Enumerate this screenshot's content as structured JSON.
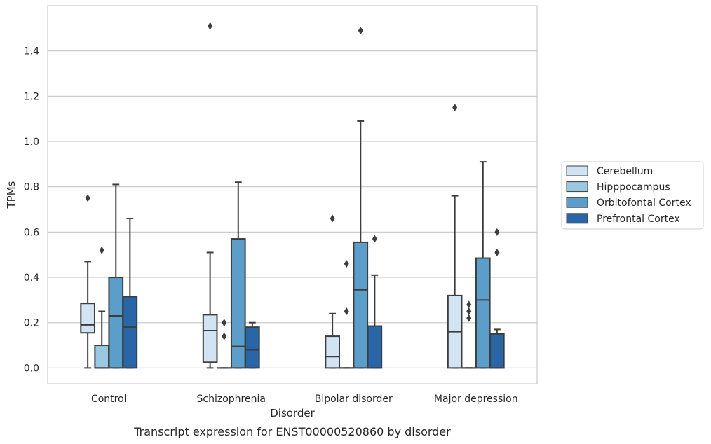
{
  "chart_data": {
    "type": "boxplot",
    "xlabel": "Disorder",
    "ylabel": "TPMs",
    "caption": "Transcript expression for ENST00000520860 by disorder",
    "ylim": [
      -0.07,
      1.6
    ],
    "yticks": [
      "0.0",
      "0.2",
      "0.4",
      "0.6",
      "0.8",
      "1.0",
      "1.2",
      "1.4"
    ],
    "grid": "horizontal",
    "legend_position": "right",
    "categories": [
      "Control",
      "Schizophrenia",
      "Bipolar disorder",
      "Major depression"
    ],
    "series": [
      {
        "name": "Cerebellum",
        "color": "#d2e3f3",
        "boxes": [
          {
            "whisker_low": 0.0,
            "q1": 0.155,
            "median": 0.19,
            "q3": 0.285,
            "whisker_high": 0.47,
            "outliers": [
              0.75
            ]
          },
          {
            "whisker_low": 0.0,
            "q1": 0.025,
            "median": 0.165,
            "q3": 0.235,
            "whisker_high": 0.51,
            "outliers": [
              1.51
            ]
          },
          {
            "whisker_low": 0.0,
            "q1": 0.0,
            "median": 0.05,
            "q3": 0.14,
            "whisker_high": 0.24,
            "outliers": [
              0.66
            ]
          },
          {
            "whisker_low": 0.0,
            "q1": 0.0,
            "median": 0.16,
            "q3": 0.32,
            "whisker_high": 0.76,
            "outliers": [
              1.15
            ]
          }
        ]
      },
      {
        "name": "Hipppocampus",
        "color": "#9ac8e0",
        "boxes": [
          {
            "whisker_low": 0.0,
            "q1": 0.0,
            "median": 0.0,
            "q3": 0.1,
            "whisker_high": 0.25,
            "outliers": [
              0.52
            ]
          },
          {
            "whisker_low": 0.0,
            "q1": 0.0,
            "median": 0.0,
            "q3": 0.0,
            "whisker_high": 0.0,
            "outliers": [
              0.2,
              0.14
            ]
          },
          {
            "whisker_low": 0.0,
            "q1": 0.0,
            "median": 0.0,
            "q3": 0.0,
            "whisker_high": 0.0,
            "outliers": [
              0.46,
              0.25
            ]
          },
          {
            "whisker_low": 0.0,
            "q1": 0.0,
            "median": 0.0,
            "q3": 0.0,
            "whisker_high": 0.0,
            "outliers": [
              0.28,
              0.25,
              0.22
            ]
          }
        ]
      },
      {
        "name": "Orbitofontal Cortex",
        "color": "#5a9ec9",
        "boxes": [
          {
            "whisker_low": 0.0,
            "q1": 0.0,
            "median": 0.23,
            "q3": 0.4,
            "whisker_high": 0.81,
            "outliers": []
          },
          {
            "whisker_low": 0.0,
            "q1": 0.0,
            "median": 0.095,
            "q3": 0.57,
            "whisker_high": 0.82,
            "outliers": []
          },
          {
            "whisker_low": 0.0,
            "q1": 0.0,
            "median": 0.345,
            "q3": 0.555,
            "whisker_high": 1.09,
            "outliers": [
              1.49
            ]
          },
          {
            "whisker_low": 0.0,
            "q1": 0.0,
            "median": 0.3,
            "q3": 0.485,
            "whisker_high": 0.91,
            "outliers": []
          }
        ]
      },
      {
        "name": "Prefrontal Cortex",
        "color": "#2866a8",
        "boxes": [
          {
            "whisker_low": 0.0,
            "q1": 0.0,
            "median": 0.18,
            "q3": 0.315,
            "whisker_high": 0.66,
            "outliers": []
          },
          {
            "whisker_low": 0.0,
            "q1": 0.0,
            "median": 0.08,
            "q3": 0.18,
            "whisker_high": 0.2,
            "outliers": []
          },
          {
            "whisker_low": 0.0,
            "q1": 0.0,
            "median": 0.0,
            "q3": 0.185,
            "whisker_high": 0.41,
            "outliers": [
              0.57
            ]
          },
          {
            "whisker_low": 0.0,
            "q1": 0.0,
            "median": 0.0,
            "q3": 0.15,
            "whisker_high": 0.17,
            "outliers": [
              0.6,
              0.51
            ]
          }
        ]
      }
    ]
  }
}
